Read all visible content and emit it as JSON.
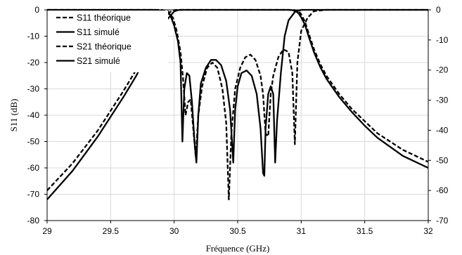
{
  "chart_data": {
    "type": "line",
    "xlabel": "Fréquence (GHz)",
    "ylabel": "S11 (dB)",
    "xlim": [
      29,
      32
    ],
    "ylim": [
      -80,
      0
    ],
    "y2lim": [
      -70,
      0
    ],
    "x_ticks": [
      "29",
      "29.5",
      "30",
      "30.5",
      "31",
      "31.5",
      "32"
    ],
    "y_ticks": [
      "0",
      "-10",
      "-20",
      "-30",
      "-40",
      "-50",
      "-60",
      "-70",
      "-80"
    ],
    "y2_ticks": [
      "0",
      "-10",
      "-20",
      "-30",
      "-40",
      "-50",
      "-60",
      "-70"
    ],
    "grid": true,
    "legend_position": "top-left",
    "series": [
      {
        "name": "S11 théorique",
        "style": "dashed",
        "axis": "left",
        "x": [
          29.0,
          29.9,
          29.95,
          29.99,
          30.02,
          30.05,
          30.07,
          30.09,
          30.11,
          30.13,
          30.15,
          30.17,
          30.19,
          30.22,
          30.26,
          30.3,
          30.34,
          30.38,
          30.41,
          30.43,
          30.45,
          30.48,
          30.52,
          30.56,
          30.6,
          30.64,
          30.68,
          30.7,
          30.72,
          30.74,
          30.76,
          30.78,
          30.82,
          30.86,
          30.9,
          30.93,
          30.95,
          30.97,
          31.0,
          31.05,
          31.1,
          31.2,
          32.0
        ],
        "y": [
          0,
          0,
          -0.5,
          -3,
          -8,
          -16,
          -26,
          -40,
          -35,
          -34,
          -45,
          -56,
          -40,
          -29,
          -22,
          -20,
          -22,
          -30,
          -43,
          -72,
          -47,
          -30,
          -22,
          -18,
          -17,
          -19,
          -25,
          -32,
          -47,
          -48,
          -32,
          -25,
          -18,
          -15,
          -16,
          -24,
          -51,
          -20,
          -8,
          -3,
          -0.5,
          0,
          0
        ]
      },
      {
        "name": "S11 simulé",
        "style": "solid",
        "axis": "left",
        "x": [
          29.0,
          29.85,
          29.92,
          29.97,
          30.0,
          30.03,
          30.05,
          30.065,
          30.08,
          30.1,
          30.12,
          30.14,
          30.16,
          30.175,
          30.19,
          30.21,
          30.25,
          30.29,
          30.33,
          30.37,
          30.41,
          30.44,
          30.465,
          30.48,
          30.5,
          30.53,
          30.57,
          30.61,
          30.65,
          30.68,
          30.7,
          30.71,
          30.72,
          30.74,
          30.76,
          30.78,
          30.795,
          30.81,
          30.84,
          30.87,
          30.9,
          30.95,
          31.0,
          32.0
        ],
        "y": [
          0,
          0,
          -0.3,
          -2,
          -6,
          -12,
          -20,
          -50,
          -30,
          -24,
          -25,
          -35,
          -50,
          -58,
          -40,
          -28,
          -22,
          -19,
          -19,
          -21,
          -27,
          -38,
          -58,
          -38,
          -29,
          -24,
          -23,
          -25,
          -32,
          -45,
          -62,
          -63,
          -45,
          -32,
          -29,
          -32,
          -58,
          -42,
          -24,
          -10,
          -4,
          -0.8,
          0,
          0
        ]
      },
      {
        "name": "S21 théorique",
        "style": "dashed",
        "axis": "right",
        "x": [
          29.0,
          29.2,
          29.4,
          29.6,
          29.7,
          29.8,
          29.85,
          29.9,
          29.95,
          29.98,
          30.0,
          30.02,
          30.05,
          30.1,
          30.5,
          30.9,
          30.95,
          30.98,
          31.0,
          31.03,
          31.06,
          31.1,
          31.15,
          31.2,
          31.3,
          31.4,
          31.5,
          31.6,
          31.8,
          32.0
        ],
        "y": [
          -60,
          -51,
          -40,
          -27,
          -20,
          -12,
          -8,
          -4,
          -1.2,
          -0.4,
          -0.1,
          0,
          0,
          0,
          0,
          0,
          -0.1,
          -0.5,
          -1.5,
          -4,
          -8,
          -13,
          -18,
          -22,
          -28,
          -33,
          -37,
          -41,
          -46.5,
          -50.5
        ]
      },
      {
        "name": "S21 simulé",
        "style": "solid",
        "axis": "right",
        "x": [
          29.0,
          29.2,
          29.4,
          29.6,
          29.7,
          29.8,
          29.85,
          29.9,
          29.95,
          29.98,
          30.0,
          30.03,
          30.05,
          30.1,
          30.5,
          30.9,
          30.93,
          30.96,
          30.98,
          31.0,
          31.03,
          31.06,
          31.1,
          31.15,
          31.2,
          31.3,
          31.4,
          31.5,
          31.6,
          31.8,
          32.0
        ],
        "y": [
          -63,
          -53.5,
          -42,
          -29,
          -22,
          -14,
          -10,
          -6,
          -3,
          -1.5,
          -0.5,
          -0.1,
          0,
          0,
          0,
          0,
          -0.1,
          -0.5,
          -1.2,
          -2.5,
          -5,
          -9,
          -14,
          -19,
          -23,
          -29,
          -34,
          -38.5,
          -42.5,
          -48.5,
          -52.5
        ]
      }
    ]
  }
}
